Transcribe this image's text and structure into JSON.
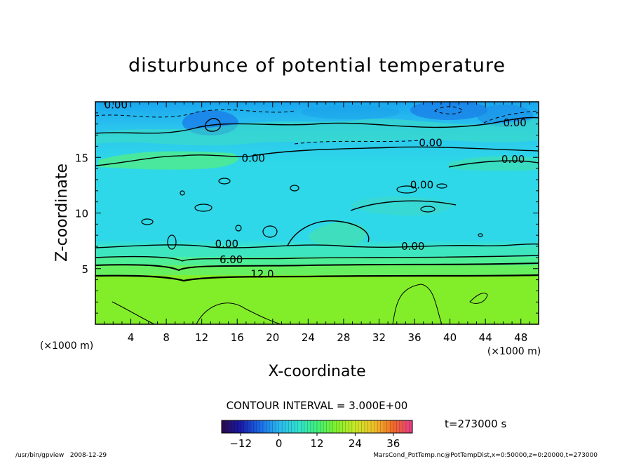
{
  "chart_data": {
    "type": "heatmap",
    "title": "disturbunce of potential temperature",
    "xlabel": "X-coordinate",
    "ylabel": "Z-coordinate",
    "x_units": "(×1000 m)",
    "y_units": "(×1000 m)",
    "xlim": [
      0,
      50
    ],
    "ylim": [
      0,
      20
    ],
    "x_ticks": [
      4,
      8,
      12,
      16,
      20,
      24,
      28,
      32,
      36,
      40,
      44,
      48
    ],
    "y_ticks": [
      5,
      10,
      15
    ],
    "contour_interval_text": "CONTOUR INTERVAL = 3.000E+00",
    "contour_labels": [
      {
        "text": "0.00",
        "x": 1.0,
        "z": 19.4
      },
      {
        "text": "0.00",
        "x": 46.0,
        "z": 17.8
      },
      {
        "text": "0.00",
        "x": 36.5,
        "z": 16.0
      },
      {
        "text": "0.00",
        "x": 16.5,
        "z": 14.6
      },
      {
        "text": "0.00",
        "x": 45.8,
        "z": 14.5
      },
      {
        "text": "0.00",
        "x": 35.5,
        "z": 12.2
      },
      {
        "text": "0.00",
        "x": 13.5,
        "z": 6.9
      },
      {
        "text": "0.00",
        "x": 34.5,
        "z": 6.7
      },
      {
        "text": "6.00",
        "x": 14.0,
        "z": 5.5
      },
      {
        "text": "12.0",
        "x": 17.5,
        "z": 4.2
      }
    ],
    "colorbar": {
      "min": -18,
      "max": 42,
      "tick_labels": [
        "−12",
        "0",
        "12",
        "24",
        "36"
      ],
      "tick_values": [
        -12,
        0,
        12,
        24,
        36
      ]
    },
    "time_text": "t=273000 s"
  },
  "footer": {
    "left": "/usr/bin/gpview   2008-12-29",
    "right": "MarsCond_PotTemp.nc@PotTempDist,x=0:50000,z=0:20000,t=273000"
  }
}
